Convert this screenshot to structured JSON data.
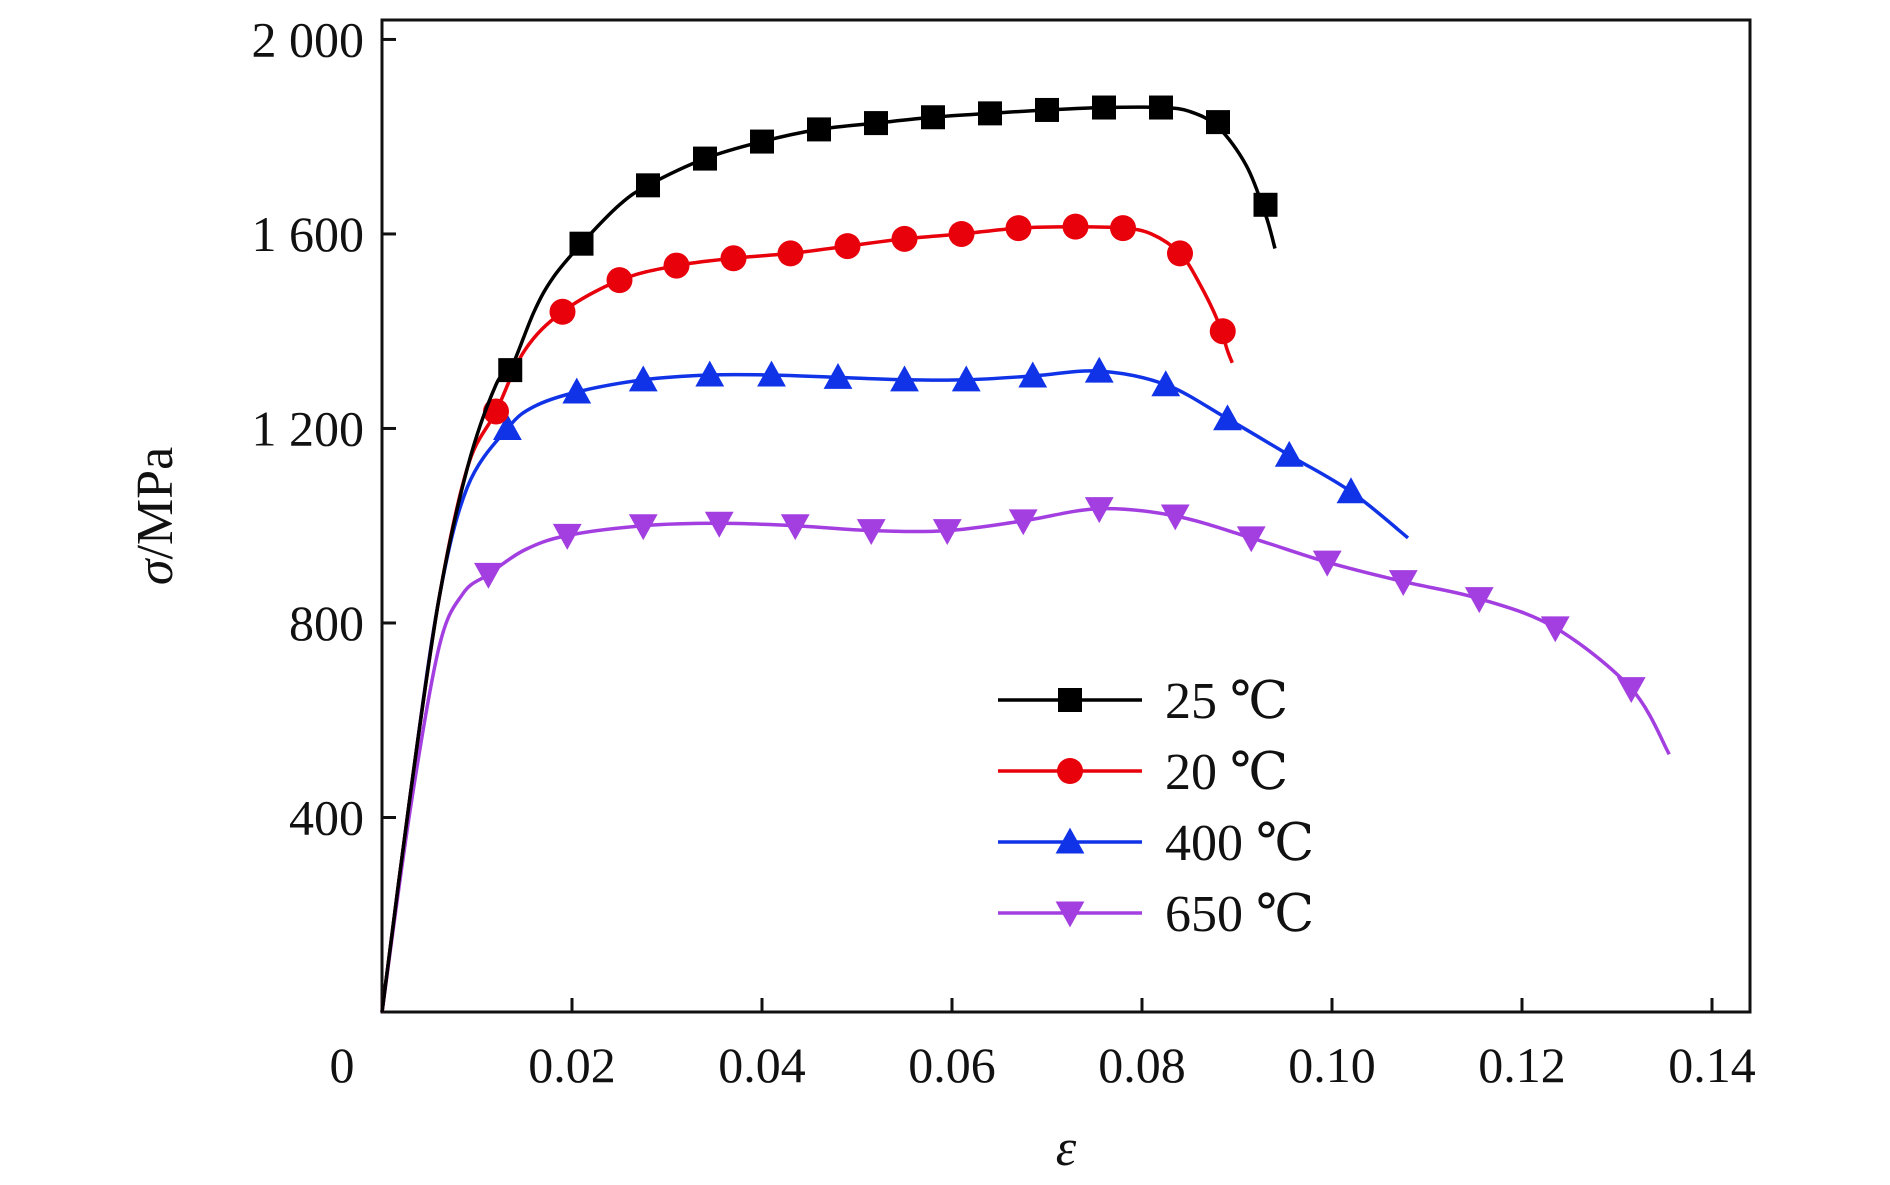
{
  "chart_data": {
    "type": "line",
    "title": "",
    "xlabel_symbol": "ε",
    "ylabel_symbol": "σ",
    "ylabel_unit": "/MPa",
    "xlim": [
      0,
      0.144
    ],
    "ylim": [
      0,
      2040
    ],
    "x_ticks": [
      0.02,
      0.04,
      0.06,
      0.08,
      0.1,
      0.12,
      0.14
    ],
    "x_tick_labels": [
      "0.02",
      "0.04",
      "0.06",
      "0.08",
      "0.10",
      "0.12",
      "0.14"
    ],
    "x_origin_label": "0",
    "y_ticks": [
      400,
      800,
      1200,
      1600,
      2000
    ],
    "y_tick_labels": [
      "400",
      "800",
      "1 200",
      "1 600",
      "2 000"
    ],
    "grid": false,
    "legend_position": "bottom-center",
    "series": [
      {
        "name": "25 ℃",
        "color": "#000000",
        "marker": "square",
        "x": [
          0.0,
          0.003,
          0.006,
          0.009,
          0.012,
          0.0135,
          0.016,
          0.018,
          0.021,
          0.025,
          0.028,
          0.034,
          0.04,
          0.046,
          0.052,
          0.058,
          0.064,
          0.07,
          0.076,
          0.082,
          0.085,
          0.088,
          0.091,
          0.093,
          0.094
        ],
        "y": [
          0,
          450,
          850,
          1120,
          1290,
          1320,
          1440,
          1510,
          1580,
          1660,
          1700,
          1755,
          1790,
          1815,
          1828,
          1840,
          1848,
          1855,
          1860,
          1860,
          1852,
          1820,
          1740,
          1640,
          1570
        ],
        "marker_x": [
          0.0135,
          0.021,
          0.028,
          0.034,
          0.04,
          0.046,
          0.052,
          0.058,
          0.064,
          0.07,
          0.076,
          0.082,
          0.088,
          0.093
        ],
        "marker_y": [
          1320,
          1580,
          1700,
          1755,
          1790,
          1815,
          1828,
          1840,
          1848,
          1855,
          1860,
          1860,
          1830,
          1660
        ]
      },
      {
        "name": "20 ℃",
        "color": "#e8000b",
        "marker": "circle",
        "x": [
          0.0,
          0.003,
          0.006,
          0.009,
          0.012,
          0.015,
          0.019,
          0.025,
          0.031,
          0.037,
          0.043,
          0.049,
          0.055,
          0.061,
          0.067,
          0.073,
          0.078,
          0.081,
          0.084,
          0.086,
          0.088,
          0.089,
          0.0895
        ],
        "y": [
          0,
          450,
          850,
          1120,
          1235,
          1360,
          1440,
          1505,
          1535,
          1550,
          1560,
          1575,
          1590,
          1600,
          1612,
          1615,
          1612,
          1600,
          1560,
          1500,
          1420,
          1360,
          1335
        ],
        "marker_x": [
          0.012,
          0.019,
          0.025,
          0.031,
          0.037,
          0.043,
          0.049,
          0.055,
          0.061,
          0.067,
          0.073,
          0.078,
          0.084,
          0.0885
        ],
        "marker_y": [
          1235,
          1440,
          1505,
          1535,
          1550,
          1560,
          1575,
          1590,
          1600,
          1612,
          1615,
          1612,
          1560,
          1400
        ]
      },
      {
        "name": "400 ℃",
        "color": "#1033e8",
        "marker": "triangle-up",
        "x": [
          0.0,
          0.003,
          0.006,
          0.009,
          0.0132,
          0.016,
          0.0205,
          0.0275,
          0.0345,
          0.041,
          0.048,
          0.055,
          0.0615,
          0.0685,
          0.0755,
          0.0825,
          0.089,
          0.0955,
          0.102,
          0.108
        ],
        "y": [
          0,
          450,
          850,
          1080,
          1200,
          1245,
          1275,
          1300,
          1310,
          1310,
          1305,
          1300,
          1300,
          1308,
          1318,
          1290,
          1220,
          1145,
          1070,
          975
        ],
        "marker_x": [
          0.0132,
          0.0205,
          0.0275,
          0.0345,
          0.041,
          0.048,
          0.055,
          0.0615,
          0.0685,
          0.0755,
          0.0825,
          0.089,
          0.0955,
          0.102
        ],
        "marker_y": [
          1200,
          1275,
          1300,
          1310,
          1310,
          1305,
          1300,
          1300,
          1308,
          1318,
          1290,
          1220,
          1145,
          1070
        ]
      },
      {
        "name": "650 ℃",
        "color": "#a33fe0",
        "marker": "triangle-down",
        "x": [
          0.0,
          0.003,
          0.006,
          0.0085,
          0.0112,
          0.015,
          0.0195,
          0.0275,
          0.0355,
          0.0435,
          0.0515,
          0.0595,
          0.0675,
          0.0755,
          0.0835,
          0.0915,
          0.0995,
          0.1075,
          0.1155,
          0.1235,
          0.1315,
          0.1355
        ],
        "y": [
          0,
          420,
          750,
          860,
          900,
          950,
          980,
          1000,
          1005,
          1000,
          990,
          990,
          1010,
          1035,
          1020,
          975,
          925,
          885,
          850,
          790,
          665,
          530
        ],
        "marker_x": [
          0.0112,
          0.0195,
          0.0275,
          0.0355,
          0.0435,
          0.0515,
          0.0595,
          0.0675,
          0.0755,
          0.0835,
          0.0915,
          0.0995,
          0.1075,
          0.1155,
          0.1235,
          0.1315
        ],
        "marker_y": [
          900,
          980,
          1000,
          1005,
          1000,
          990,
          990,
          1010,
          1035,
          1020,
          975,
          925,
          885,
          850,
          790,
          665
        ]
      }
    ]
  }
}
